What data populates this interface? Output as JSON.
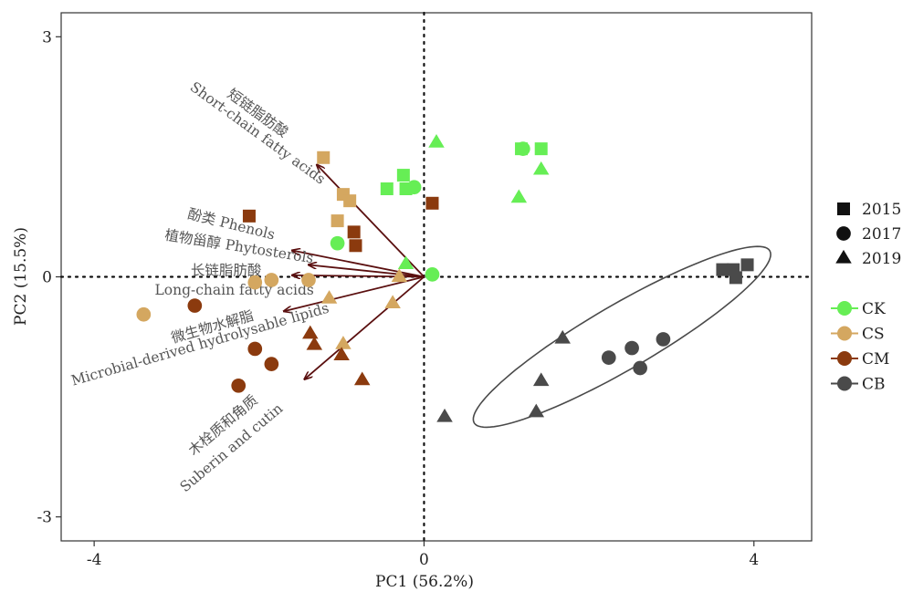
{
  "chart_data": {
    "type": "scatter",
    "title": "",
    "xlabel": "PC1 (56.2%)",
    "ylabel": "PC2 (15.5%)",
    "xlim": [
      -4.4,
      4.7
    ],
    "ylim": [
      -3.3,
      3.3
    ],
    "x_ticks": [
      "-4",
      "0",
      "4"
    ],
    "y_ticks": [
      "3",
      "0",
      "-3"
    ],
    "x_tick_values": [
      -4,
      0,
      4
    ],
    "y_tick_values": [
      3,
      0,
      -3
    ],
    "grid": false,
    "zero_lines": true,
    "colors": {
      "CK": "#66ee55",
      "CS": "#d4a760",
      "CM": "#8b3a0e",
      "CB": "#4a4a4a",
      "arrow": "#5a0f0f",
      "ellipse": "#4a4a4a"
    },
    "legend": {
      "placement": "right",
      "shape_entries": [
        {
          "label": "2015",
          "shape": "square"
        },
        {
          "label": "2017",
          "shape": "circle"
        },
        {
          "label": "2019",
          "shape": "triangle"
        }
      ],
      "group_entries": [
        {
          "label": "CK",
          "group": "CK"
        },
        {
          "label": "CS",
          "group": "CS"
        },
        {
          "label": "CM",
          "group": "CM"
        },
        {
          "label": "CB",
          "group": "CB"
        }
      ]
    },
    "series": [
      {
        "group": "CK",
        "shape": "square",
        "points": [
          [
            -0.25,
            1.27
          ],
          [
            -0.45,
            1.1
          ],
          [
            -0.22,
            1.1
          ],
          [
            1.18,
            1.6
          ],
          [
            1.42,
            1.6
          ]
        ]
      },
      {
        "group": "CK",
        "shape": "circle",
        "points": [
          [
            -0.12,
            1.12
          ],
          [
            1.2,
            1.6
          ],
          [
            -1.05,
            0.42
          ],
          [
            0.1,
            0.03
          ]
        ]
      },
      {
        "group": "CK",
        "shape": "triangle",
        "points": [
          [
            0.15,
            1.68
          ],
          [
            1.42,
            1.34
          ],
          [
            1.15,
            0.99
          ],
          [
            -0.22,
            0.16
          ]
        ]
      },
      {
        "group": "CS",
        "shape": "square",
        "points": [
          [
            -1.22,
            1.49
          ],
          [
            -0.98,
            1.03
          ],
          [
            -0.9,
            0.95
          ],
          [
            -1.05,
            0.7
          ]
        ]
      },
      {
        "group": "CS",
        "shape": "circle",
        "points": [
          [
            -3.4,
            -0.47
          ],
          [
            -2.05,
            -0.07
          ],
          [
            -1.85,
            -0.04
          ],
          [
            -1.4,
            -0.04
          ]
        ]
      },
      {
        "group": "CS",
        "shape": "triangle",
        "points": [
          [
            -0.3,
            0.0
          ],
          [
            -1.15,
            -0.27
          ],
          [
            -0.38,
            -0.33
          ],
          [
            -0.98,
            -0.84
          ]
        ]
      },
      {
        "group": "CM",
        "shape": "square",
        "points": [
          [
            0.1,
            0.92
          ],
          [
            -2.12,
            0.76
          ],
          [
            -0.85,
            0.56
          ],
          [
            -0.83,
            0.39
          ]
        ]
      },
      {
        "group": "CM",
        "shape": "circle",
        "points": [
          [
            -2.78,
            -0.36
          ],
          [
            -2.05,
            -0.9
          ],
          [
            -1.85,
            -1.09
          ],
          [
            -2.25,
            -1.36
          ]
        ]
      },
      {
        "group": "CM",
        "shape": "triangle",
        "points": [
          [
            -1.38,
            -0.71
          ],
          [
            -1.33,
            -0.85
          ],
          [
            -1.0,
            -0.98
          ],
          [
            -0.75,
            -1.29
          ]
        ]
      },
      {
        "group": "CB",
        "shape": "square",
        "points": [
          [
            3.62,
            0.09
          ],
          [
            3.75,
            0.09
          ],
          [
            3.78,
            -0.01
          ],
          [
            3.92,
            0.15
          ]
        ]
      },
      {
        "group": "CB",
        "shape": "circle",
        "points": [
          [
            2.9,
            -0.78
          ],
          [
            2.52,
            -0.89
          ],
          [
            2.24,
            -1.01
          ],
          [
            2.62,
            -1.14
          ]
        ]
      },
      {
        "group": "CB",
        "shape": "triangle",
        "points": [
          [
            1.68,
            -0.77
          ],
          [
            1.42,
            -1.3
          ],
          [
            1.36,
            -1.69
          ],
          [
            0.25,
            -1.75
          ]
        ]
      }
    ],
    "ellipse": {
      "center": [
        2.4,
        -0.75
      ],
      "semi_major": 2.09,
      "semi_minor": 0.4,
      "angle_deg": 31
    },
    "loadings": [
      {
        "name": "短链脂肪酸 Short-chain fatty acids",
        "end": [
          -1.3,
          1.4
        ]
      },
      {
        "name": "酚类 Phenols",
        "end": [
          -1.6,
          0.33
        ]
      },
      {
        "name": "植物甾醇 Phytosterols",
        "end": [
          -1.4,
          0.15
        ]
      },
      {
        "name": "长链脂肪酸 Long-chain fatty acids",
        "end": [
          -1.6,
          0.02
        ]
      },
      {
        "name": "微生物水解脂 Microbial-derived hydrolysable lipids",
        "end": [
          -1.7,
          -0.43
        ]
      },
      {
        "name": "木栓质和角质 Suberin and cutin",
        "end": [
          -1.45,
          -1.28
        ]
      }
    ],
    "annotations": [
      {
        "text": "短链脂肪酸",
        "anchor": [
          -2.05,
          2.0
        ],
        "rotate": 36
      },
      {
        "text": "Short-chain fatty acids",
        "anchor": [
          -2.05,
          1.75
        ],
        "rotate": 36
      },
      {
        "text": "酚类 Phenols",
        "anchor": [
          -2.35,
          0.6
        ],
        "rotate": 14
      },
      {
        "text": "植物甾醇 Phytosterols",
        "anchor": [
          -2.25,
          0.32
        ],
        "rotate": 9
      },
      {
        "text": "长链脂肪酸",
        "anchor": [
          -2.4,
          0.02
        ],
        "rotate": 0
      },
      {
        "text": "Long-chain fatty acids",
        "anchor": [
          -2.3,
          -0.22
        ],
        "rotate": 0
      },
      {
        "text": "微生物水解脂",
        "anchor": [
          -2.55,
          -0.68
        ],
        "rotate": -16
      },
      {
        "text": "Microbial-derived hydrolysable lipids",
        "anchor": [
          -2.7,
          -0.9
        ],
        "rotate": -16
      },
      {
        "text": "木栓质和角质",
        "anchor": [
          -2.4,
          -1.9
        ],
        "rotate": -40
      },
      {
        "text": "Suberin and cutin",
        "anchor": [
          -2.3,
          -2.18
        ],
        "rotate": -40
      }
    ]
  }
}
